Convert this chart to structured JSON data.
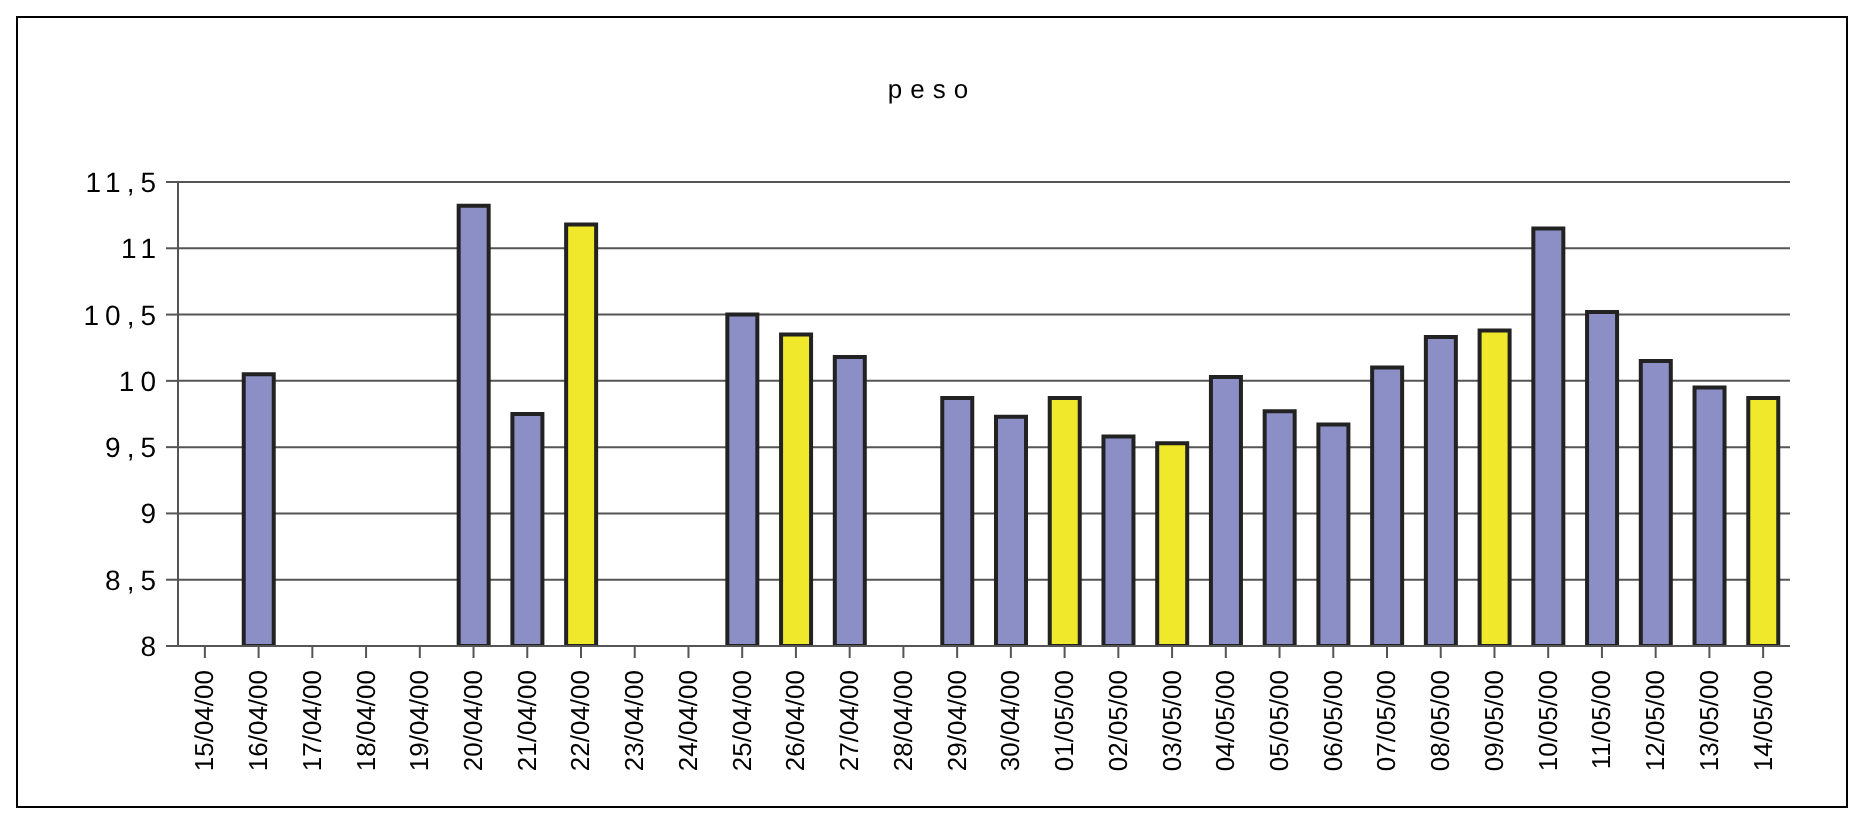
{
  "chart_data": {
    "type": "bar",
    "title": "peso",
    "categories": [
      "15/04/00",
      "16/04/00",
      "17/04/00",
      "18/04/00",
      "19/04/00",
      "20/04/00",
      "21/04/00",
      "22/04/00",
      "23/04/00",
      "24/04/00",
      "25/04/00",
      "26/04/00",
      "27/04/00",
      "28/04/00",
      "29/04/00",
      "30/04/00",
      "01/05/00",
      "02/05/00",
      "03/05/00",
      "04/05/00",
      "05/05/00",
      "06/05/00",
      "07/05/00",
      "08/05/00",
      "09/05/00",
      "10/05/00",
      "11/05/00",
      "12/05/00",
      "13/05/00",
      "14/05/00"
    ],
    "values": [
      null,
      10.05,
      null,
      null,
      null,
      11.32,
      9.75,
      11.18,
      null,
      null,
      10.5,
      10.35,
      10.18,
      null,
      9.87,
      9.73,
      9.87,
      9.58,
      9.53,
      10.03,
      9.77,
      9.67,
      10.1,
      10.33,
      10.38,
      11.15,
      10.52,
      10.15,
      9.95,
      9.87
    ],
    "colors": [
      "#8b8fc6",
      "#8b8fc6",
      "#8b8fc6",
      "#8b8fc6",
      "#8b8fc6",
      "#8b8fc6",
      "#8b8fc6",
      "#f0e82a",
      "#8b8fc6",
      "#8b8fc6",
      "#8b8fc6",
      "#f0e82a",
      "#8b8fc6",
      "#8b8fc6",
      "#8b8fc6",
      "#8b8fc6",
      "#f0e82a",
      "#8b8fc6",
      "#f0e82a",
      "#8b8fc6",
      "#8b8fc6",
      "#8b8fc6",
      "#8b8fc6",
      "#8b8fc6",
      "#f0e82a",
      "#8b8fc6",
      "#8b8fc6",
      "#8b8fc6",
      "#8b8fc6",
      "#f0e82a"
    ],
    "ylim": [
      8,
      11.5
    ],
    "yticks": [
      {
        "value": 8,
        "label": "8"
      },
      {
        "value": 8.5,
        "label": "8,5"
      },
      {
        "value": 9,
        "label": "9"
      },
      {
        "value": 9.5,
        "label": "9,5"
      },
      {
        "value": 10,
        "label": "10"
      },
      {
        "value": 10.5,
        "label": "10,5"
      },
      {
        "value": 11,
        "label": "11"
      },
      {
        "value": 11.5,
        "label": "11,5"
      }
    ],
    "grid": "y"
  }
}
